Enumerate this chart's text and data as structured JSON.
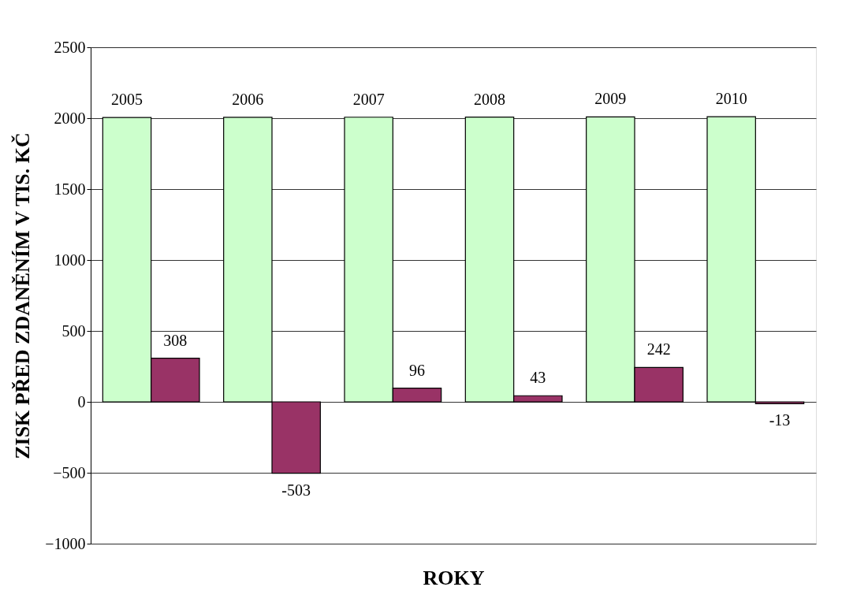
{
  "chart_data": {
    "type": "bar",
    "categories": [
      null,
      null,
      null,
      null,
      null,
      null
    ],
    "series": [
      {
        "color": "#ccffcc",
        "values": [
          2005,
          2006,
          2007,
          2008,
          2009,
          2010
        ]
      },
      {
        "color": "#993366",
        "values": [
          308,
          -503,
          96,
          43,
          242,
          -13
        ]
      }
    ],
    "ylabel": "ZISK PŘED ZDANĚNÍM V TIS. KČ",
    "xlabel": "ROKY",
    "ylim": [
      -1000,
      2500
    ],
    "yticks": [
      -1000,
      -500,
      0,
      500,
      1000,
      1500,
      2000,
      2500
    ],
    "grid": "y",
    "data_labels": true,
    "tick_labels": "y"
  }
}
